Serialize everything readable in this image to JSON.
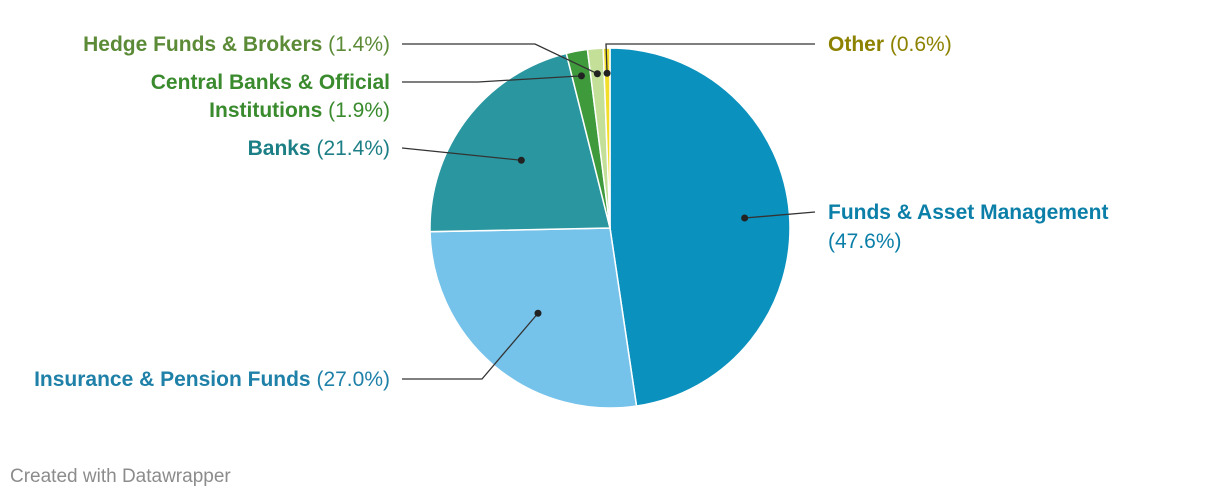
{
  "chart_data": {
    "type": "pie",
    "slices": [
      {
        "label": "Funds & Asset Management",
        "value": 47.6,
        "value_text": "(47.6%)",
        "color": "#0b91be",
        "text_color": "#0b7fa8"
      },
      {
        "label": "Insurance & Pension Funds",
        "value": 27.0,
        "value_text": "(27.0%)",
        "color": "#75c2ea",
        "text_color": "#1f80a8"
      },
      {
        "label": "Banks",
        "value": 21.4,
        "value_text": "(21.4%)",
        "color": "#2a97a0",
        "text_color": "#1d7f86"
      },
      {
        "label": "Central Banks & Official Institutions",
        "label_lines": [
          "Central Banks & Official",
          "Institutions"
        ],
        "value": 1.9,
        "value_text": "(1.9%)",
        "color": "#3f9a3b",
        "text_color": "#3a8a2e"
      },
      {
        "label": "Hedge Funds & Brokers",
        "value": 1.4,
        "value_text": "(1.4%)",
        "color": "#c3df98",
        "text_color": "#5c8b38"
      },
      {
        "label": "Other",
        "value": 0.6,
        "value_text": "(0.6%)",
        "color": "#f1dd2a",
        "text_color": "#8c8200"
      }
    ]
  },
  "footer": "Created with Datawrapper"
}
